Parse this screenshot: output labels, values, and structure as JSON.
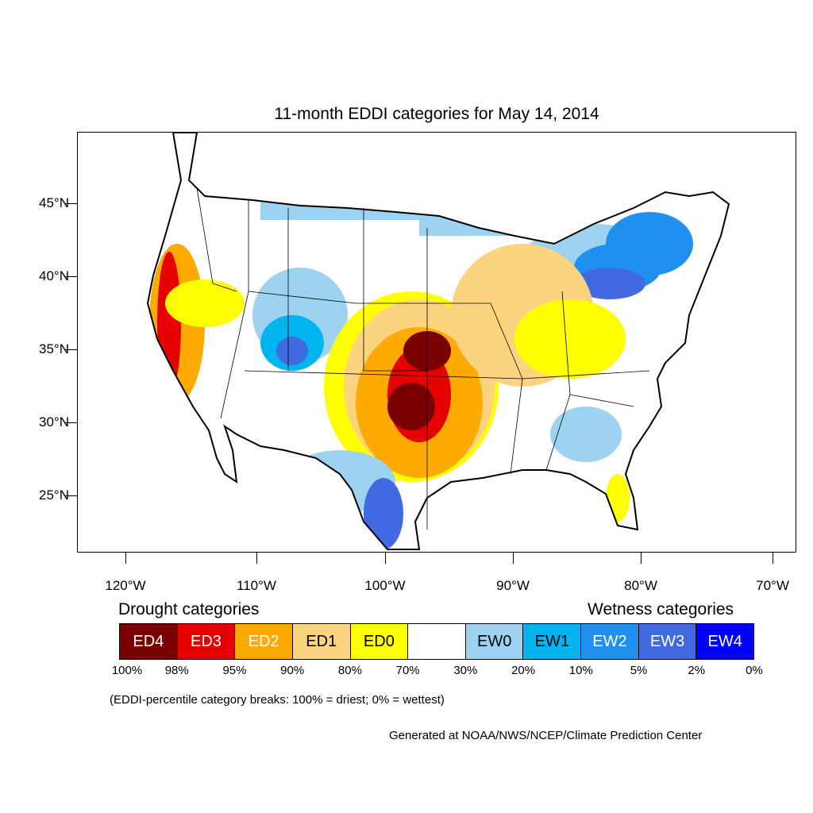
{
  "title": "11-month EDDI categories for May 14, 2014",
  "map": {
    "latitude_labels": [
      "45°N",
      "40°N",
      "35°N",
      "30°N",
      "25°N"
    ],
    "longitude_labels": [
      "120°W",
      "110°W",
      "100°W",
      "90°W",
      "80°W",
      "70°W"
    ],
    "colors": {
      "ED4": "#7a0000",
      "ED3": "#e60000",
      "ED2": "#ffaa00",
      "ED1": "#fcd37f",
      "ED0": "#ffff00",
      "neutral": "#ffffff",
      "EW0": "#9dd3f0",
      "EW1": "#00b4f0",
      "EW2": "#2090f0",
      "EW3": "#4169e1",
      "EW4": "#0000ff"
    }
  },
  "legend": {
    "drought_title": "Drought categories",
    "wetness_title": "Wetness categories",
    "categories": [
      {
        "label": "ED4",
        "color": "#7a0000",
        "text_color": "#ffffff"
      },
      {
        "label": "ED3",
        "color": "#e60000",
        "text_color": "#ffffff"
      },
      {
        "label": "ED2",
        "color": "#ffaa00",
        "text_color": "#ffffff"
      },
      {
        "label": "ED1",
        "color": "#fcd37f",
        "text_color": "#000000"
      },
      {
        "label": "ED0",
        "color": "#ffff00",
        "text_color": "#000000"
      },
      {
        "label": "",
        "color": "#ffffff",
        "text_color": "#000000"
      },
      {
        "label": "EW0",
        "color": "#9dd3f0",
        "text_color": "#000000"
      },
      {
        "label": "EW1",
        "color": "#00b4f0",
        "text_color": "#000000"
      },
      {
        "label": "EW2",
        "color": "#2090f0",
        "text_color": "#ffffff"
      },
      {
        "label": "EW3",
        "color": "#4169e1",
        "text_color": "#ffffff"
      },
      {
        "label": "EW4",
        "color": "#0000ff",
        "text_color": "#ffffff"
      }
    ],
    "percentiles": [
      "100%",
      "98%",
      "95%",
      "90%",
      "80%",
      "70%",
      "30%",
      "20%",
      "10%",
      "5%",
      "2%",
      "0%"
    ]
  },
  "breaks_note": "(EDDI-percentile category breaks: 100% = driest; 0% = wettest)",
  "credit": "Generated at NOAA/NWS/NCEP/Climate Prediction Center"
}
